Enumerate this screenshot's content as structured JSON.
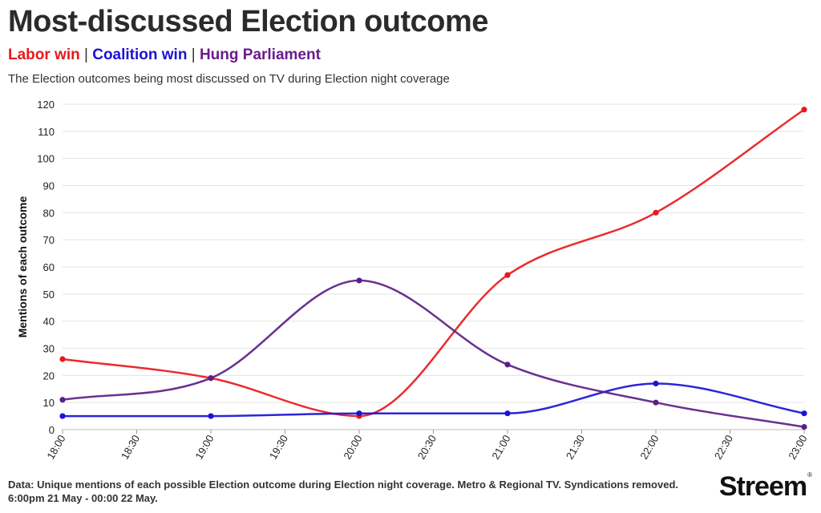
{
  "title": "Most-discussed Election outcome",
  "legend": [
    {
      "label": "Labor win",
      "color": "#e8191c"
    },
    {
      "label": "Coalition win",
      "color": "#1a13d6"
    },
    {
      "label": "Hung Parliament",
      "color": "#6a1a8c"
    }
  ],
  "legend_separator": "|",
  "subtitle": "The Election outcomes being most discussed on TV during Election night coverage",
  "footer": "Data: Unique mentions of each possible Election outcome during Election night coverage. Metro & Regional TV. Syndications removed. 6:00pm 21 May - 00:00 22 May.",
  "logo": {
    "text": "Streem",
    "mark": "®"
  },
  "chart_data": {
    "type": "line",
    "title": "Most-discussed Election outcome",
    "xlabel": "",
    "ylabel": "Mentions of each outcome",
    "x_ticks": [
      "18:00",
      "18:30",
      "19:00",
      "19:30",
      "20:00",
      "20:30",
      "21:00",
      "21:30",
      "22:00",
      "22:30",
      "23:00"
    ],
    "x": [
      "18:00",
      "19:00",
      "20:00",
      "21:00",
      "22:00",
      "23:00"
    ],
    "ylim": [
      0,
      120
    ],
    "y_ticks": [
      0,
      10,
      20,
      30,
      40,
      50,
      60,
      70,
      80,
      90,
      100,
      110,
      120
    ],
    "grid": true,
    "series": [
      {
        "name": "Labor win",
        "color": "#e8191c",
        "values": [
          26,
          19,
          5,
          57,
          80,
          118
        ]
      },
      {
        "name": "Coalition win",
        "color": "#1a13d6",
        "values": [
          5,
          5,
          6,
          6,
          17,
          6
        ]
      },
      {
        "name": "Hung Parliament",
        "color": "#5b1f86",
        "values": [
          11,
          19,
          55,
          24,
          10,
          1
        ]
      }
    ]
  }
}
